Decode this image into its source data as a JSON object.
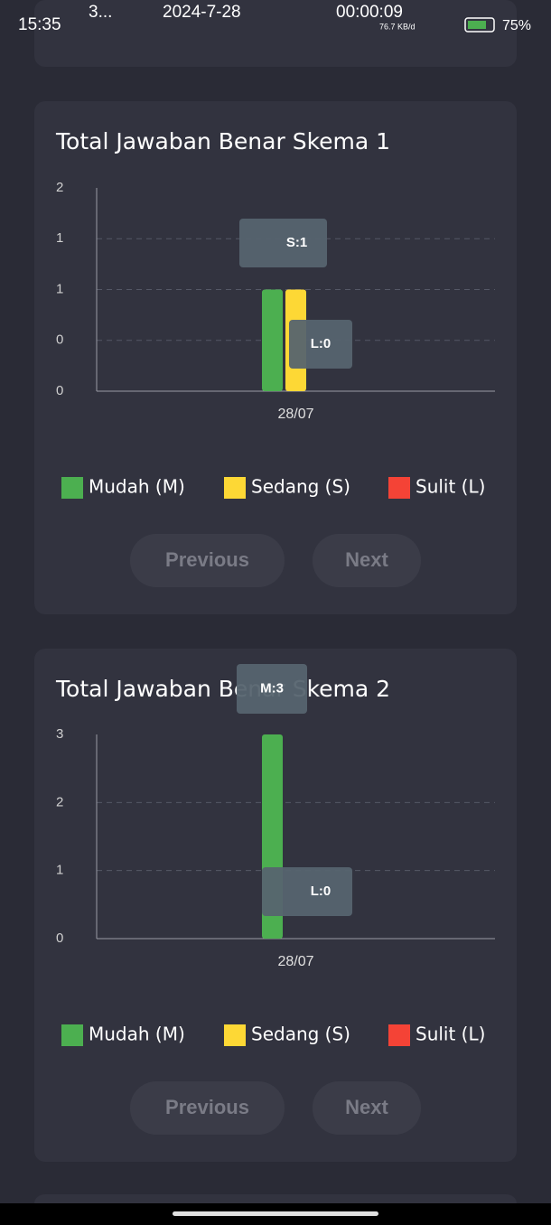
{
  "status_bar": {
    "time": "15:35",
    "notice": "3...",
    "date": "2024-7-28",
    "timer": "00:00:09",
    "speed": "76.7 KB/d",
    "battery": "75%"
  },
  "chart_data": [
    {
      "type": "bar",
      "title": "Total Jawaban Benar Skema 1",
      "categories": [
        "28/07"
      ],
      "series": [
        {
          "name": "Mudah (M)",
          "color": "#4caf50",
          "values": [
            1
          ]
        },
        {
          "name": "Sedang (S)",
          "color": "#fdd835",
          "values": [
            1
          ]
        },
        {
          "name": "Sulit (L)",
          "color": "#f44336",
          "values": [
            0
          ]
        }
      ],
      "ylim": [
        0,
        2
      ],
      "yticks": [
        0,
        {
          "value": 0.5,
          "label": "0"
        },
        1,
        {
          "value": 1.5,
          "label": "1"
        },
        2
      ],
      "grid": true,
      "annotations": [
        "S:1",
        "L:0"
      ]
    },
    {
      "type": "bar",
      "title": "Total Jawaban Benar Skema 2",
      "categories": [
        "28/07"
      ],
      "series": [
        {
          "name": "Mudah (M)",
          "color": "#4caf50",
          "values": [
            3
          ]
        },
        {
          "name": "Sedang (S)",
          "color": "#fdd835",
          "values": [
            0
          ]
        },
        {
          "name": "Sulit (L)",
          "color": "#f44336",
          "values": [
            0
          ]
        }
      ],
      "ylim": [
        0,
        3
      ],
      "yticks": [
        0,
        1,
        2,
        3
      ],
      "grid": true,
      "annotations": [
        "M:3",
        "L:0"
      ]
    }
  ],
  "pagers": [
    {
      "previous": "Previous",
      "next": "Next"
    },
    {
      "previous": "Previous",
      "next": "Next"
    }
  ]
}
